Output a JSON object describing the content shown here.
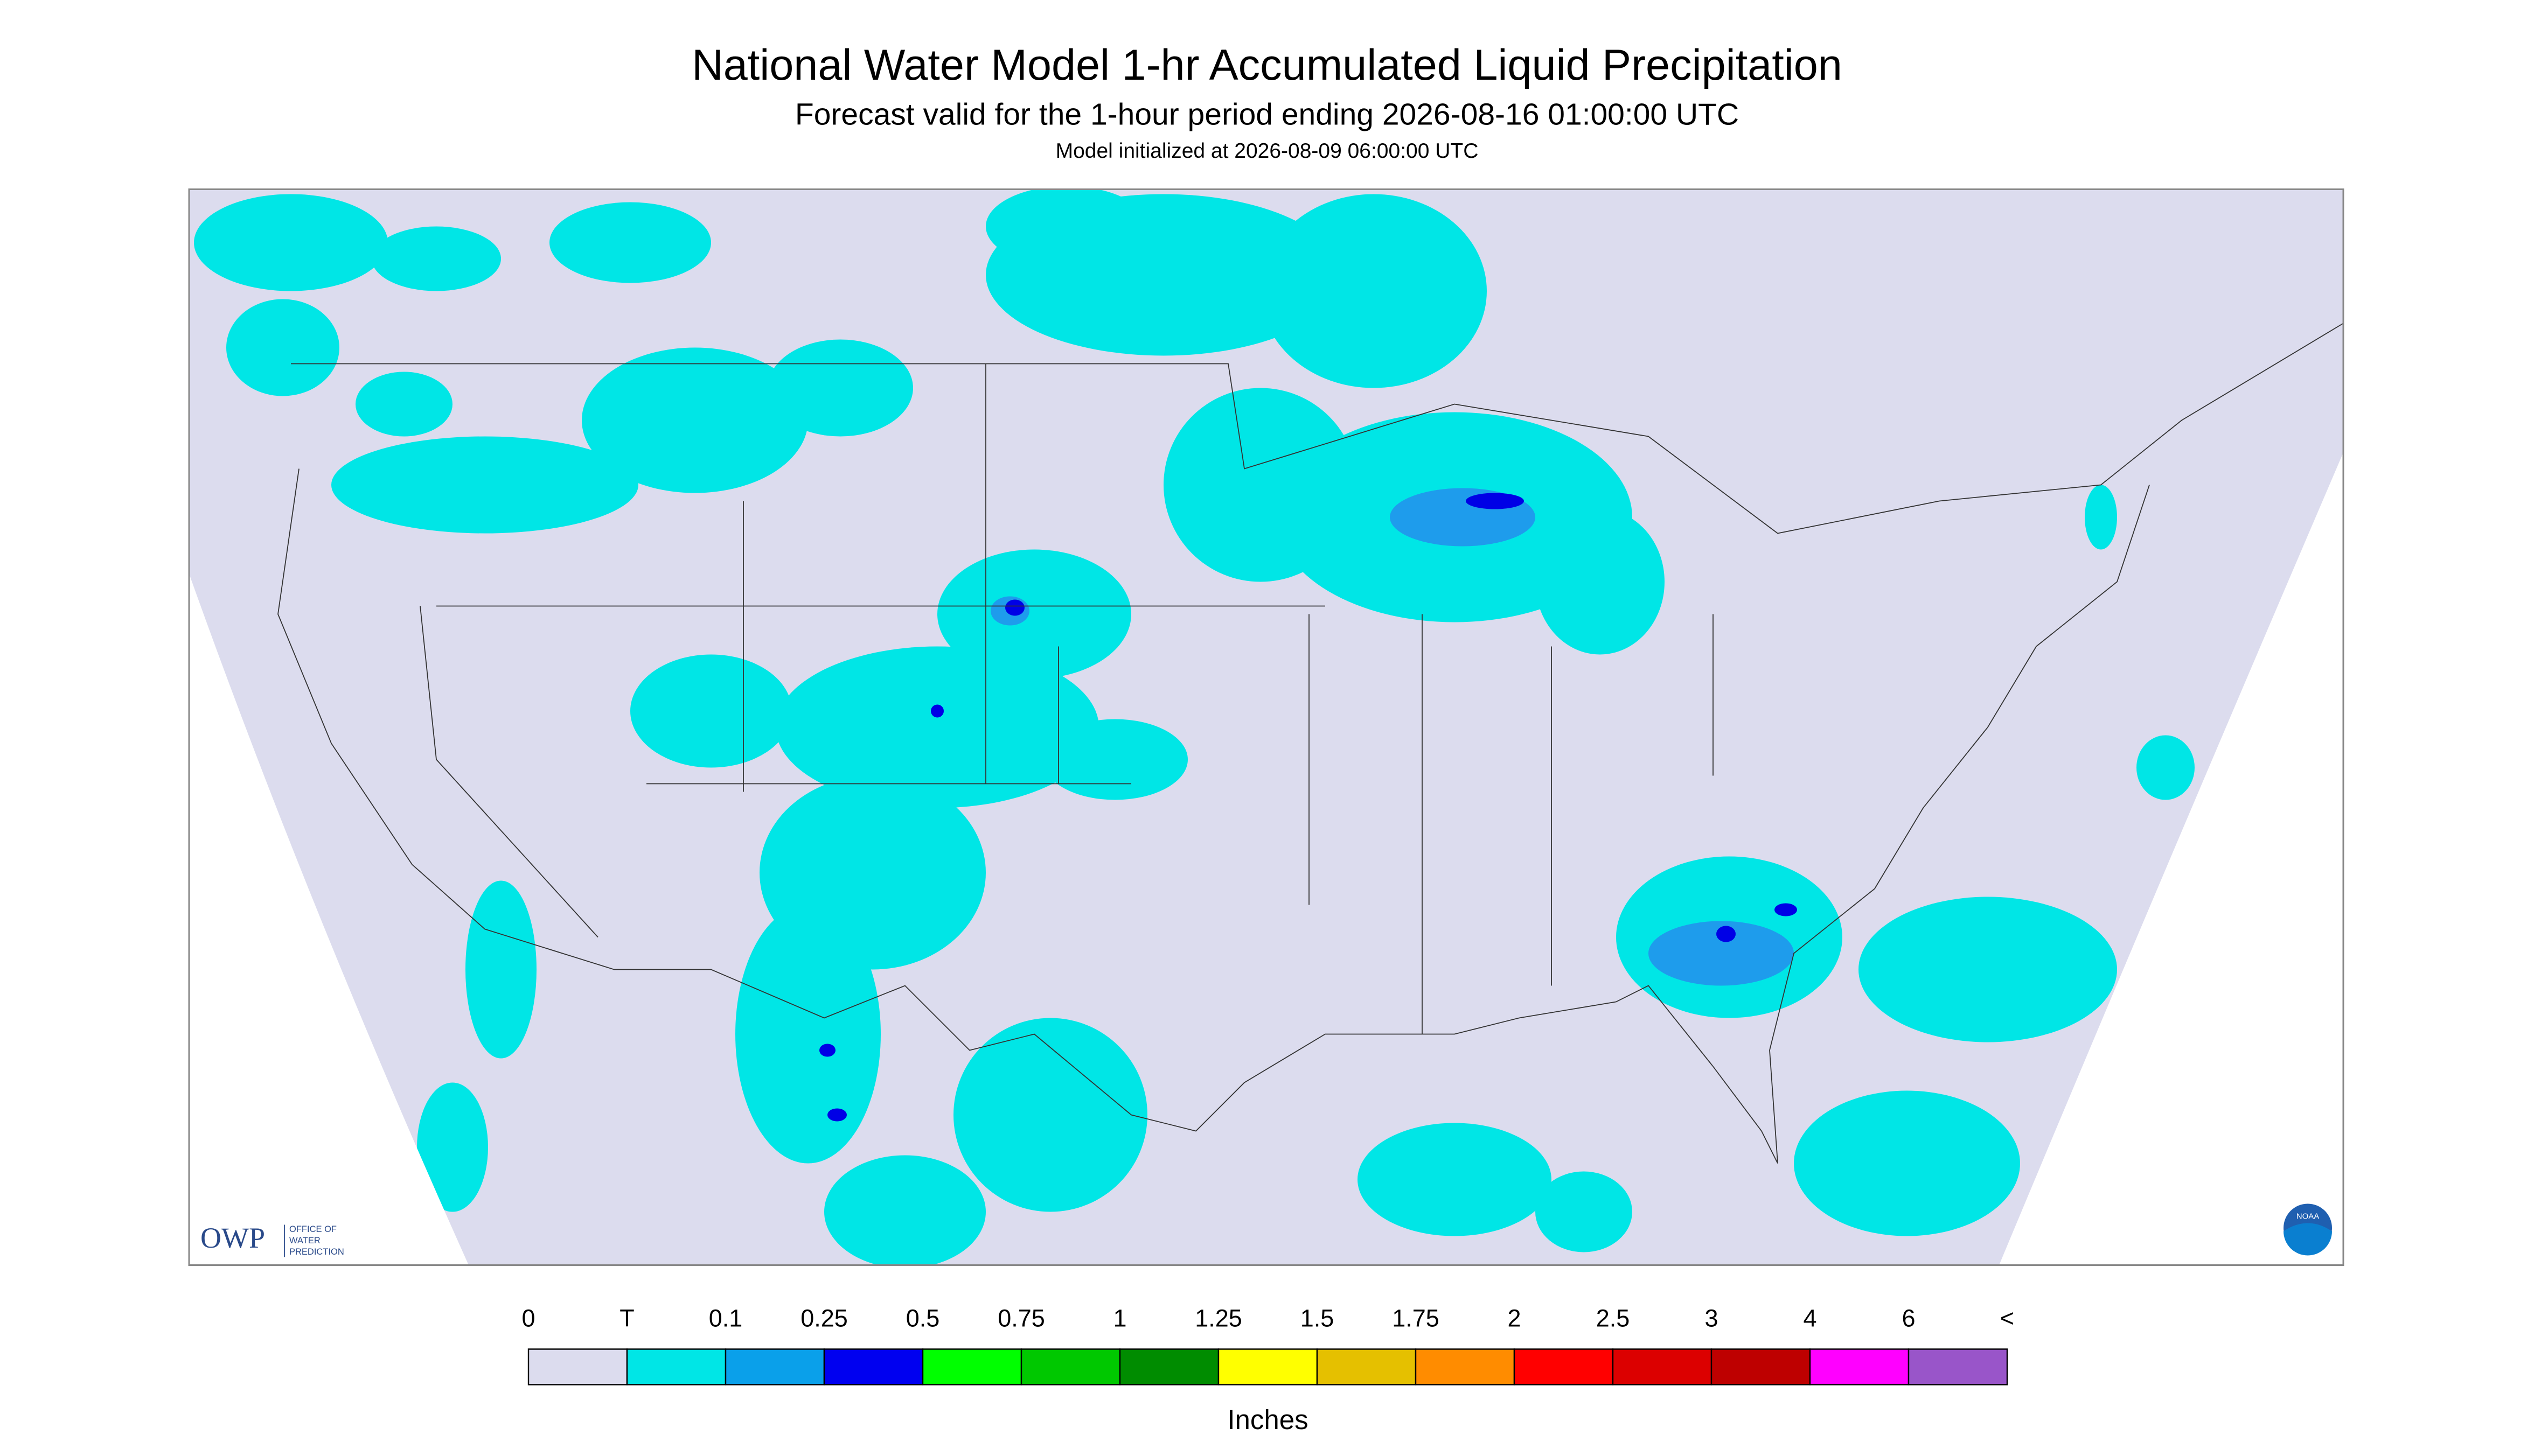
{
  "header": {
    "title": "National Water Model 1-hr Accumulated Liquid Precipitation",
    "subtitle": "Forecast valid for the 1-hour period ending 2026-08-16 01:00:00 UTC",
    "note": "Model initialized at 2026-08-09 06:00:00 UTC"
  },
  "map": {
    "logos": {
      "owp": "OWP",
      "owp_text": [
        "OFFICE OF",
        "WATER",
        "PREDICTION"
      ],
      "noaa": "NOAA"
    }
  },
  "legend": {
    "labels": [
      "0",
      "T",
      "0.1",
      "0.25",
      "0.5",
      "0.75",
      "1",
      "1.25",
      "1.5",
      "1.75",
      "2",
      "2.5",
      "3",
      "4",
      "6",
      "<"
    ],
    "colors": [
      "#dcdcee",
      "#00e6e6",
      "#0aa0ea",
      "#0000f0",
      "#00ff00",
      "#00c800",
      "#008c00",
      "#ffff00",
      "#e5c000",
      "#ff8c00",
      "#ff0000",
      "#dc0000",
      "#be0000",
      "#ff00ff",
      "#9955c9"
    ],
    "unit": "Inches"
  }
}
